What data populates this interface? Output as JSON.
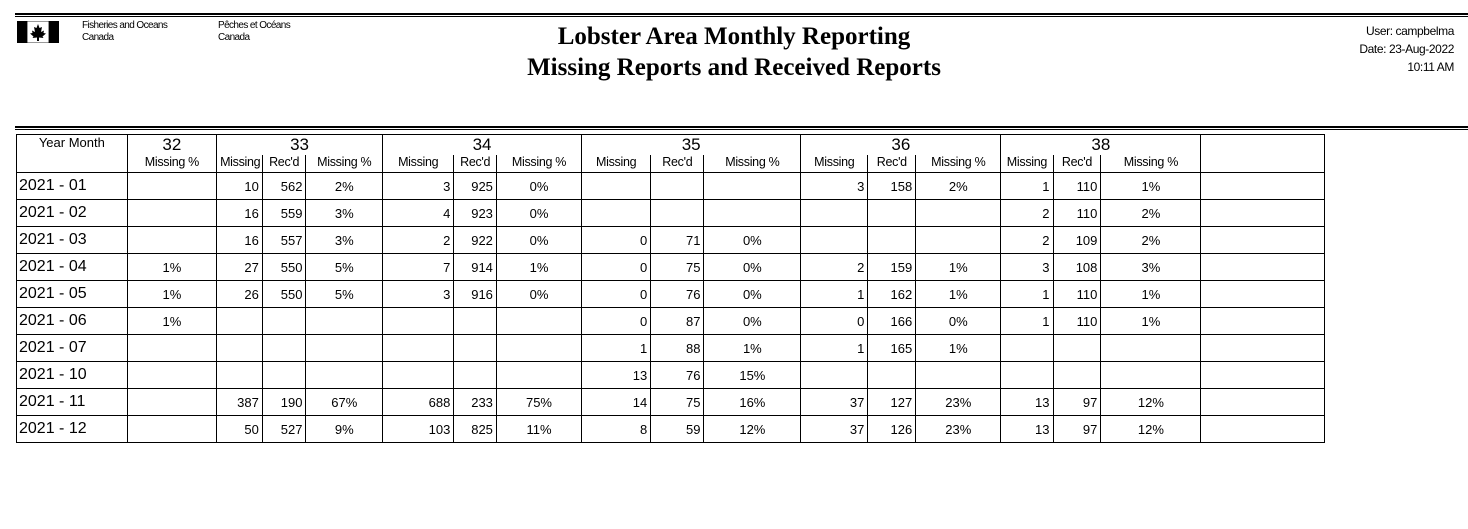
{
  "header": {
    "dept_en": [
      "Fisheries and Oceans",
      "Canada"
    ],
    "dept_fr": [
      "Pêches et Océans",
      "Canada"
    ],
    "title_line1": "Lobster Area Monthly Reporting",
    "title_line2": "Missing Reports and Received Reports",
    "user": "User: campbelma",
    "date": "Date: 23-Aug-2022",
    "time": "10:11 AM"
  },
  "table": {
    "year_month_label": "Year Month",
    "areas": [
      "32",
      "33",
      "34",
      "35",
      "36",
      "38"
    ],
    "labels": {
      "missing": "Missing",
      "recd": "Rec'd",
      "missing_pct": "Missing %"
    },
    "rows": [
      [
        "2021 - 01",
        "",
        "10",
        "562",
        "2%",
        "3",
        "925",
        "0%",
        "",
        "",
        "",
        "3",
        "158",
        "2%",
        "1",
        "110",
        "1%"
      ],
      [
        "2021 - 02",
        "",
        "16",
        "559",
        "3%",
        "4",
        "923",
        "0%",
        "",
        "",
        "",
        "",
        "",
        "",
        "2",
        "110",
        "2%"
      ],
      [
        "2021 - 03",
        "",
        "16",
        "557",
        "3%",
        "2",
        "922",
        "0%",
        "0",
        "71",
        "0%",
        "",
        "",
        "",
        "2",
        "109",
        "2%"
      ],
      [
        "2021 - 04",
        "1%",
        "27",
        "550",
        "5%",
        "7",
        "914",
        "1%",
        "0",
        "75",
        "0%",
        "2",
        "159",
        "1%",
        "3",
        "108",
        "3%"
      ],
      [
        "2021 - 05",
        "1%",
        "26",
        "550",
        "5%",
        "3",
        "916",
        "0%",
        "0",
        "76",
        "0%",
        "1",
        "162",
        "1%",
        "1",
        "110",
        "1%"
      ],
      [
        "2021 - 06",
        "1%",
        "",
        "",
        "",
        "",
        "",
        "",
        "0",
        "87",
        "0%",
        "0",
        "166",
        "0%",
        "1",
        "110",
        "1%"
      ],
      [
        "2021 - 07",
        "",
        "",
        "",
        "",
        "",
        "",
        "",
        "1",
        "88",
        "1%",
        "1",
        "165",
        "1%",
        "",
        "",
        ""
      ],
      [
        "2021 - 10",
        "",
        "",
        "",
        "",
        "",
        "",
        "",
        "13",
        "76",
        "15%",
        "",
        "",
        "",
        "",
        "",
        ""
      ],
      [
        "2021 - 11",
        "",
        "387",
        "190",
        "67%",
        "688",
        "233",
        "75%",
        "14",
        "75",
        "16%",
        "37",
        "127",
        "23%",
        "13",
        "97",
        "12%"
      ],
      [
        "2021 - 12",
        "",
        "50",
        "527",
        "9%",
        "103",
        "825",
        "11%",
        "8",
        "59",
        "12%",
        "37",
        "126",
        "23%",
        "13",
        "97",
        "12%"
      ]
    ]
  }
}
